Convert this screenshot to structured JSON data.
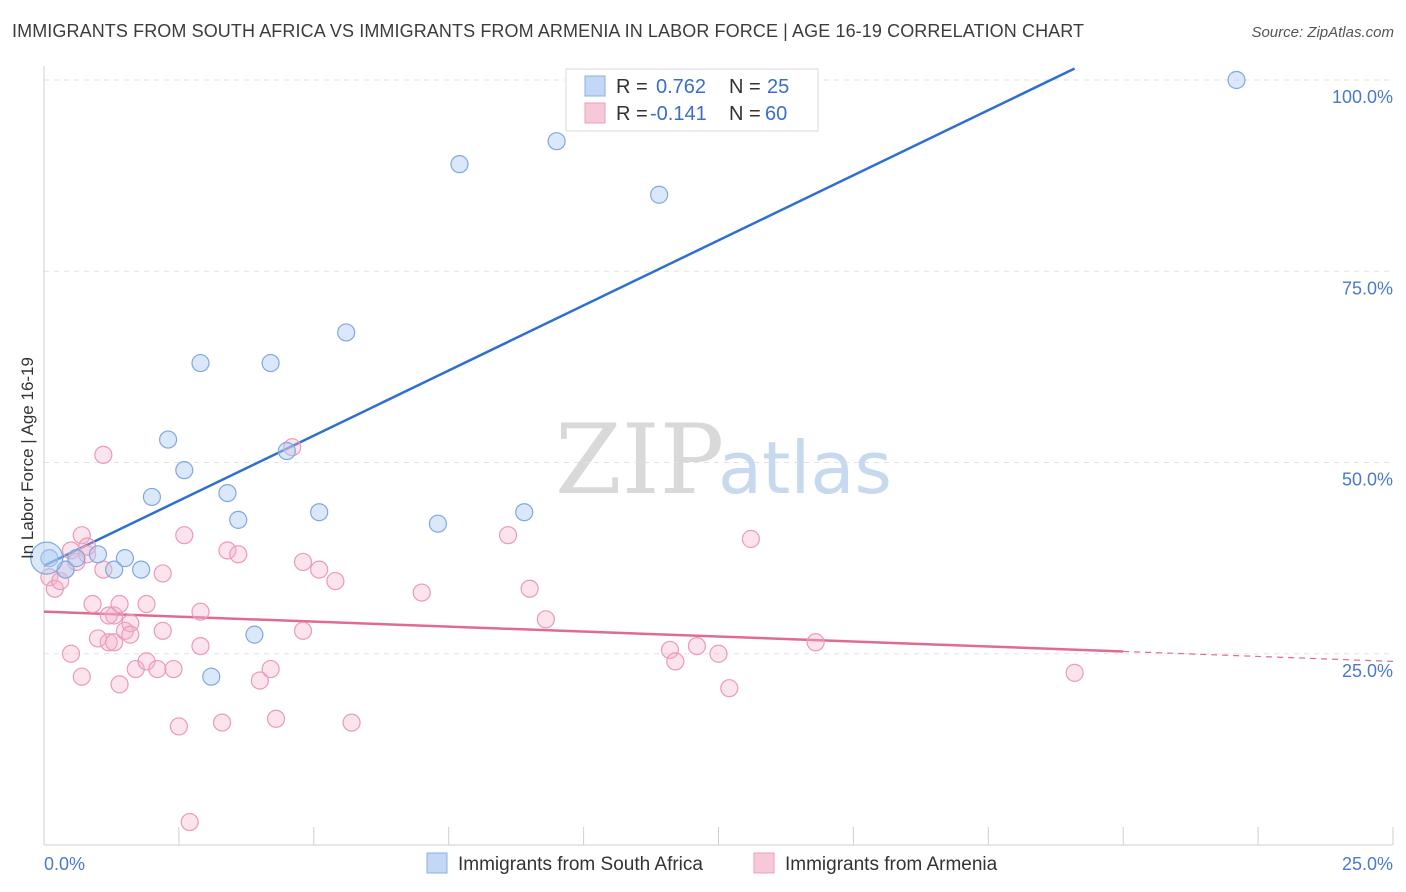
{
  "title": "IMMIGRANTS FROM SOUTH AFRICA VS IMMIGRANTS FROM ARMENIA IN LABOR FORCE | AGE 16-19 CORRELATION CHART",
  "source": "Source: ZipAtlas.com",
  "watermark": {
    "zip": "ZIP",
    "atlas": "atlas"
  },
  "legend_top": [
    {
      "r_label": "R =",
      "r_value": "0.762",
      "n_label": "N =",
      "n_value": "25"
    },
    {
      "r_label": "R =",
      "r_value": "-0.141",
      "n_label": "N =",
      "n_value": "60"
    }
  ],
  "chart_data": {
    "type": "scatter",
    "title": "IMMIGRANTS FROM SOUTH AFRICA VS IMMIGRANTS FROM ARMENIA IN LABOR FORCE | AGE 16-19 CORRELATION CHART",
    "xlabel": "",
    "ylabel": "In Labor Force | Age 16-19",
    "xlim": [
      0,
      25
    ],
    "ylim": [
      0,
      100
    ],
    "x_tick_labels": [
      "0.0%",
      "25.0%"
    ],
    "y_ticks": [
      25,
      50,
      75,
      100
    ],
    "y_tick_labels": [
      "25.0%",
      "50.0%",
      "75.0%",
      "100.0%"
    ],
    "grid": true,
    "colors": {
      "south_africa": "#6a9ee0",
      "armenia": "#ec8aa8",
      "sa_line": "#2f6fd0",
      "ar_line": "#e06a94"
    },
    "series": [
      {
        "name": "Immigrants from South Africa",
        "R": 0.762,
        "N": 25,
        "trend": {
          "x0": 0,
          "y0": 36.5,
          "x1": 19.1,
          "y1": 101.5
        },
        "points": [
          [
            0.1,
            37.5
          ],
          [
            0.4,
            36.0
          ],
          [
            1.0,
            38.0
          ],
          [
            1.3,
            36.0
          ],
          [
            1.5,
            37.5
          ],
          [
            1.8,
            36.0
          ],
          [
            2.0,
            45.5
          ],
          [
            2.3,
            53.0
          ],
          [
            2.6,
            49.0
          ],
          [
            2.9,
            63.0
          ],
          [
            3.1,
            22.0
          ],
          [
            3.4,
            46.0
          ],
          [
            3.6,
            42.5
          ],
          [
            3.9,
            27.5
          ],
          [
            4.2,
            63.0
          ],
          [
            4.5,
            51.5
          ],
          [
            5.1,
            43.5
          ],
          [
            5.6,
            67.0
          ],
          [
            7.3,
            42.0
          ],
          [
            7.7,
            89.0
          ],
          [
            8.9,
            43.5
          ],
          [
            9.5,
            92.0
          ],
          [
            11.4,
            85.0
          ],
          [
            22.1,
            100.0
          ],
          [
            0.6,
            37.5
          ]
        ]
      },
      {
        "name": "Immigrants from Armenia",
        "R": -0.141,
        "N": 60,
        "trend": {
          "x0": 0,
          "y0": 30.5,
          "x1": 20,
          "y1": 25.3
        },
        "trend_dashed": {
          "x0": 20,
          "y0": 25.3,
          "x1": 25,
          "y1": 24.0
        },
        "points": [
          [
            0.1,
            35.0
          ],
          [
            0.2,
            33.5
          ],
          [
            0.3,
            34.5
          ],
          [
            0.4,
            36.0
          ],
          [
            0.5,
            38.5
          ],
          [
            0.6,
            37.0
          ],
          [
            0.5,
            25.0
          ],
          [
            0.7,
            40.5
          ],
          [
            0.8,
            38.0
          ],
          [
            0.7,
            22.0
          ],
          [
            0.8,
            39.0
          ],
          [
            0.9,
            31.5
          ],
          [
            1.0,
            27.0
          ],
          [
            1.1,
            36.0
          ],
          [
            1.1,
            51.0
          ],
          [
            1.2,
            26.5
          ],
          [
            1.3,
            30.0
          ],
          [
            1.3,
            26.5
          ],
          [
            1.4,
            31.5
          ],
          [
            1.4,
            21.0
          ],
          [
            1.5,
            28.0
          ],
          [
            1.6,
            29.0
          ],
          [
            1.7,
            23.0
          ],
          [
            1.9,
            24.0
          ],
          [
            1.9,
            31.5
          ],
          [
            2.1,
            23.0
          ],
          [
            2.2,
            28.0
          ],
          [
            2.2,
            35.5
          ],
          [
            2.4,
            23.0
          ],
          [
            2.5,
            15.5
          ],
          [
            2.6,
            40.5
          ],
          [
            2.7,
            3.0
          ],
          [
            2.9,
            26.0
          ],
          [
            2.9,
            30.5
          ],
          [
            3.3,
            16.0
          ],
          [
            3.4,
            38.5
          ],
          [
            3.6,
            38.0
          ],
          [
            4.0,
            21.5
          ],
          [
            4.2,
            23.0
          ],
          [
            4.3,
            16.5
          ],
          [
            4.6,
            52.0
          ],
          [
            4.8,
            28.0
          ],
          [
            4.8,
            37.0
          ],
          [
            5.1,
            36.0
          ],
          [
            5.4,
            34.5
          ],
          [
            5.7,
            16.0
          ],
          [
            7.0,
            33.0
          ],
          [
            8.6,
            40.5
          ],
          [
            9.0,
            33.5
          ],
          [
            9.3,
            29.5
          ],
          [
            11.6,
            25.5
          ],
          [
            11.7,
            24.0
          ],
          [
            12.1,
            26.0
          ],
          [
            12.5,
            25.0
          ],
          [
            12.7,
            20.5
          ],
          [
            13.1,
            40.0
          ],
          [
            14.3,
            26.5
          ],
          [
            19.1,
            22.5
          ],
          [
            1.6,
            27.5
          ],
          [
            1.2,
            30.0
          ]
        ]
      }
    ]
  }
}
